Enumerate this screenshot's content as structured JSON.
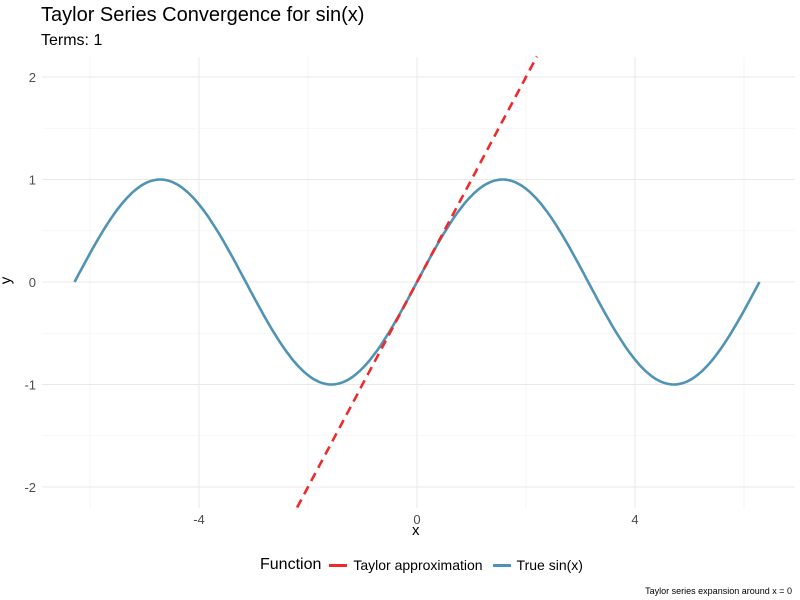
{
  "chart_data": {
    "type": "line",
    "title": "Taylor Series Convergence for sin(x)",
    "subtitle": "Terms: 1",
    "xlabel": "x",
    "ylabel": "y",
    "xlim": [
      -6.6,
      6.9
    ],
    "ylim": [
      -2.2,
      2.2
    ],
    "x_ticks": [
      -4,
      0,
      4
    ],
    "x_tick_labels": [
      "-4",
      "0",
      "4"
    ],
    "y_ticks": [
      -2,
      -1,
      0,
      1,
      2
    ],
    "y_tick_labels": [
      "-2",
      "-1",
      "0",
      "1",
      "2"
    ],
    "grid": true,
    "legend_title": "Function",
    "legend_position": "bottom",
    "series": [
      {
        "name": "Taylor approximation",
        "function": "x",
        "x_range": [
          -2.2,
          2.2
        ],
        "color": "#EE2A2A",
        "dash": "dashed"
      },
      {
        "name": "True sin(x)",
        "function": "sin(x)",
        "x_range": [
          -6.2832,
          6.2832
        ],
        "color": "#4F93B5",
        "dash": "solid"
      }
    ],
    "caption": "Taylor series expansion around x = 0"
  }
}
